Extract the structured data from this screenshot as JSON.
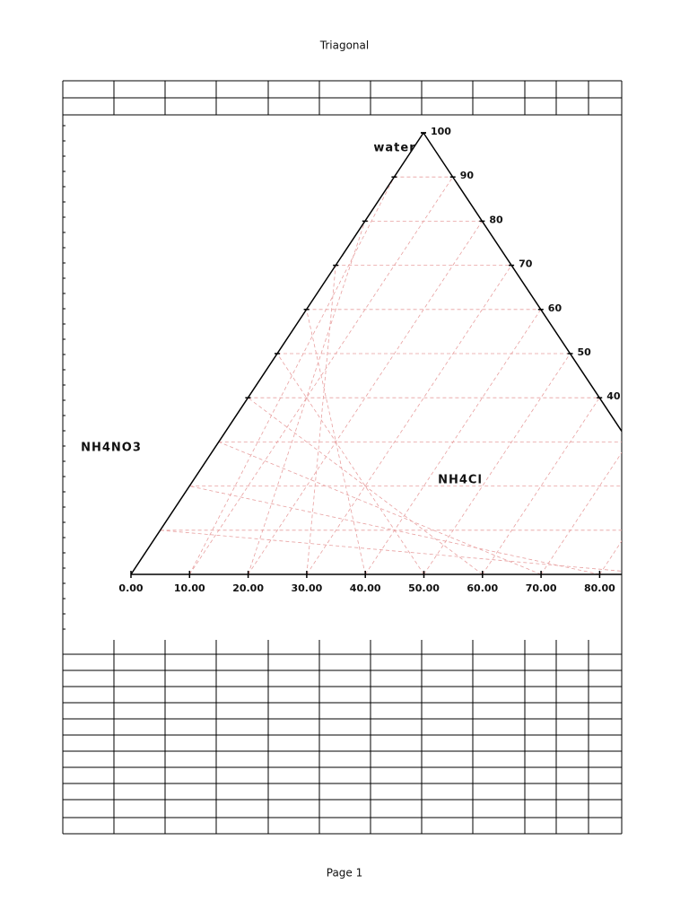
{
  "header": {
    "title": "Triagonal"
  },
  "chart": {
    "corner_labels": {
      "top": "water",
      "left": "NH4NO3",
      "right": "NH4Cl"
    },
    "bottom_ticks": [
      {
        "value": 0,
        "label": "0.00"
      },
      {
        "value": 10,
        "label": "10.00"
      },
      {
        "value": 20,
        "label": "20.00"
      },
      {
        "value": 30,
        "label": "30.00"
      },
      {
        "value": 40,
        "label": "40.00"
      },
      {
        "value": 50,
        "label": "50.00"
      },
      {
        "value": 60,
        "label": "60.00"
      },
      {
        "value": 70,
        "label": "70.00"
      },
      {
        "value": 80,
        "label": "80.00"
      }
    ],
    "right_ticks": [
      100,
      90,
      80,
      70,
      60,
      50,
      40
    ]
  },
  "footer": {
    "page": "Page 1"
  }
}
